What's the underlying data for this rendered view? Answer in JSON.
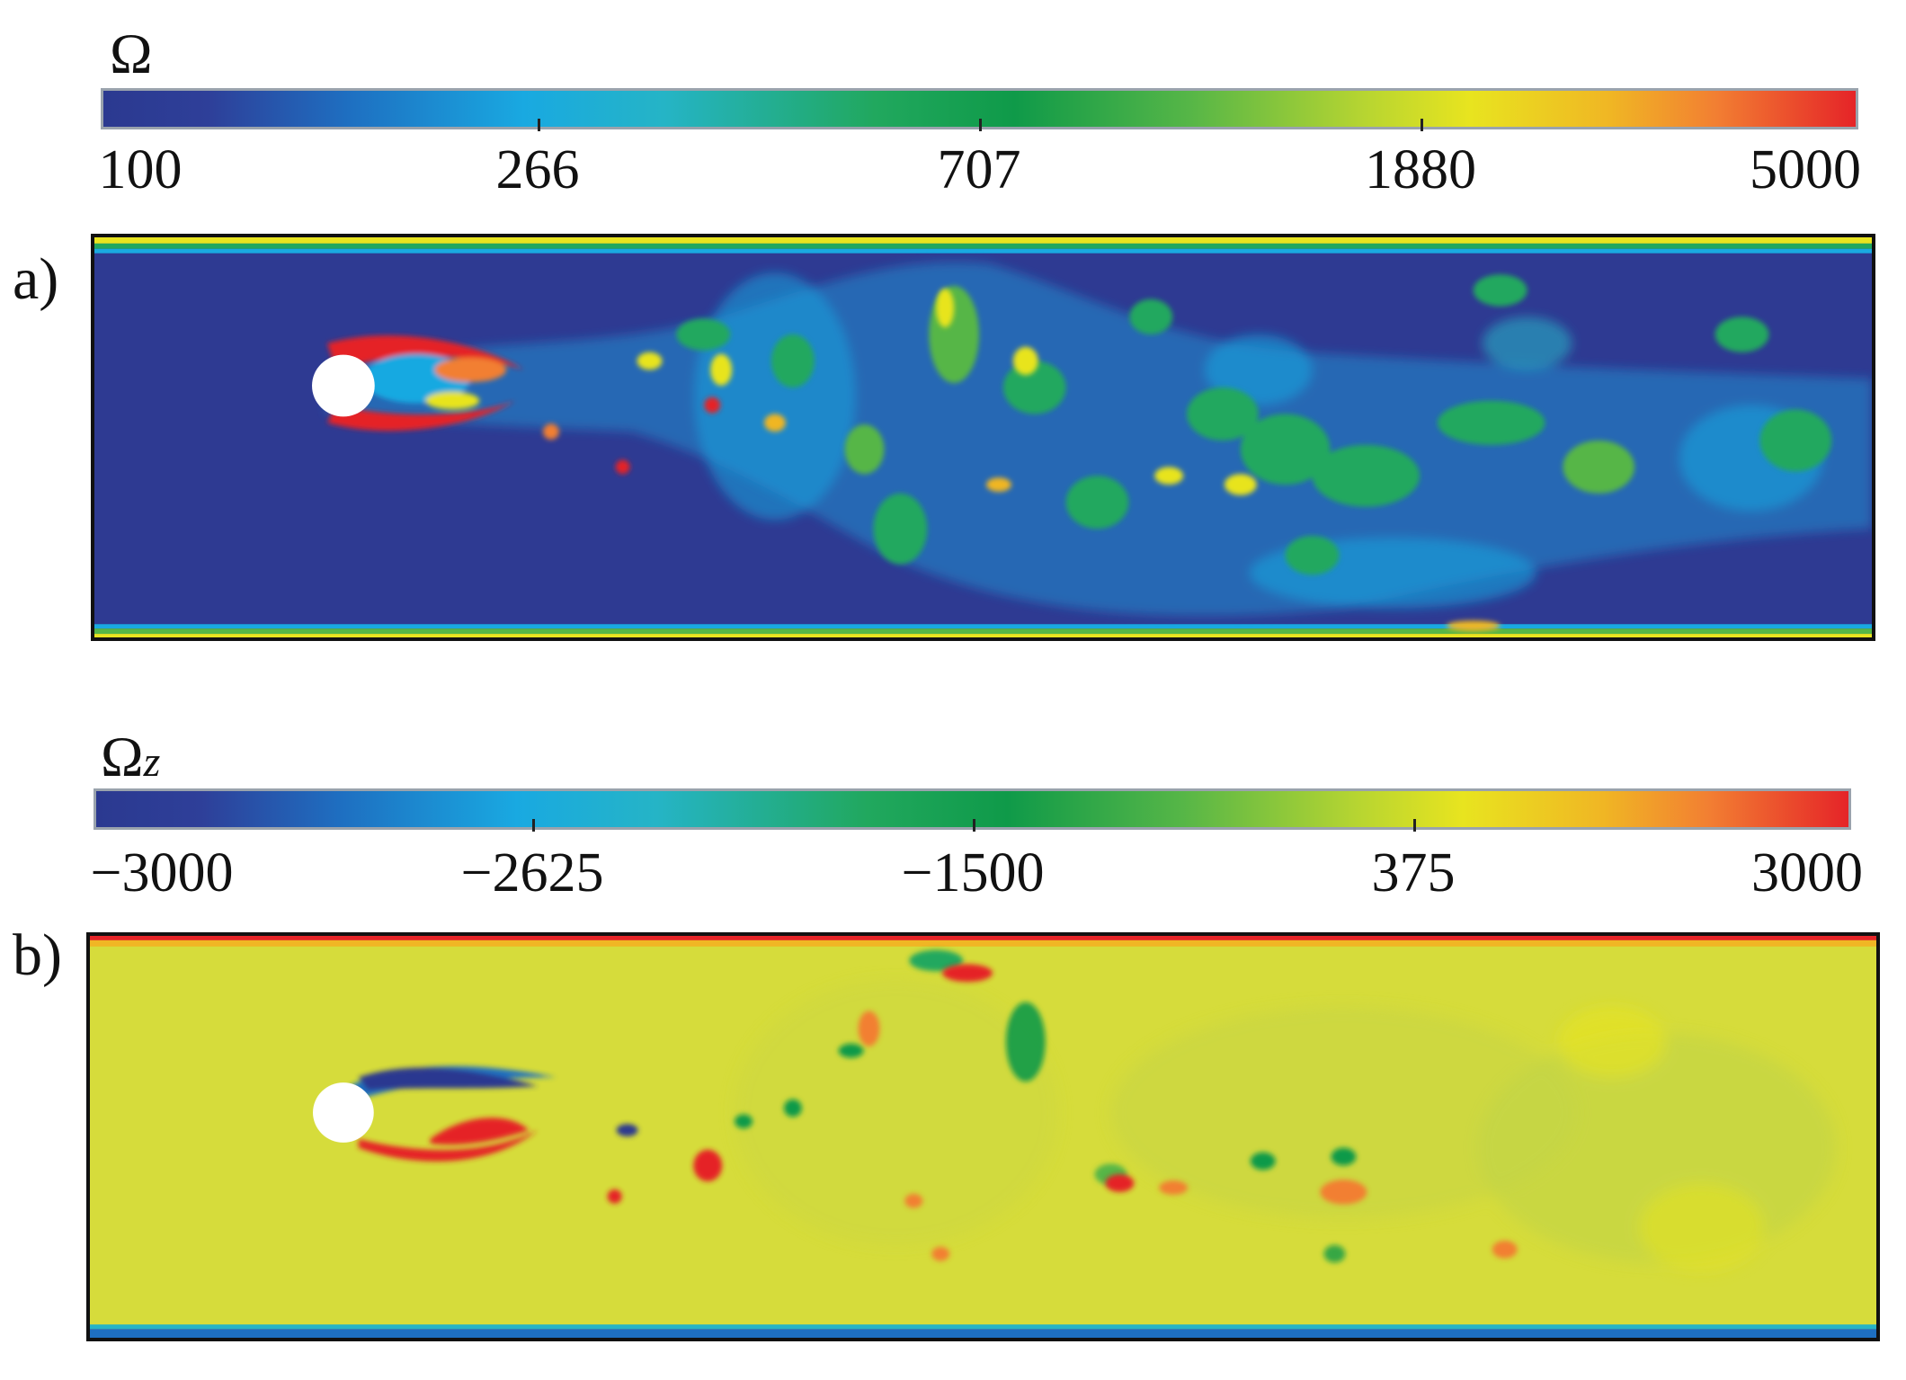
{
  "figure": {
    "panels": [
      {
        "label": "a)",
        "colorbar": {
          "symbol": "Ω",
          "subscript": "",
          "ticks": [
            "100",
            "266",
            "707",
            "1880",
            "5000"
          ],
          "colors": [
            "#2b3990",
            "#1e6fc1",
            "#19a9e1",
            "#0f9a49",
            "#e8e41f",
            "#f27f32",
            "#e52428"
          ]
        }
      },
      {
        "label": "b)",
        "colorbar": {
          "symbol": "Ω",
          "subscript": "z",
          "ticks": [
            "−3000",
            "−2625",
            "−1500",
            "375",
            "3000"
          ],
          "colors": [
            "#2b3990",
            "#1e6fc1",
            "#19a9e1",
            "#0f9a49",
            "#e8e41f",
            "#f27f32",
            "#e52428"
          ]
        }
      }
    ]
  }
}
